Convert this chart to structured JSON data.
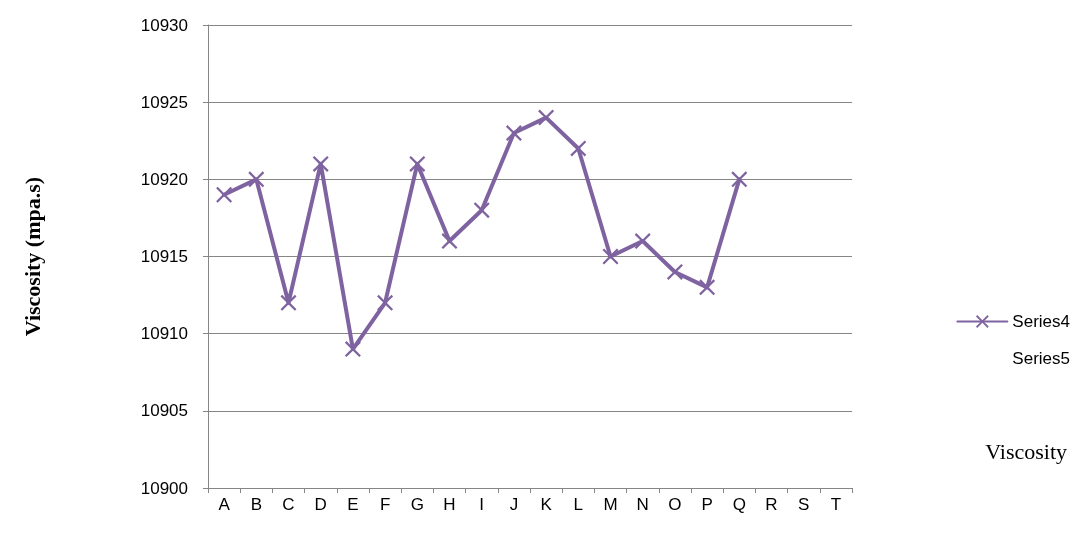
{
  "chart_data": {
    "type": "line",
    "ylabel": "Viscosity (mpa.s)",
    "annotations": [
      "Viscosity"
    ],
    "categories": [
      "A",
      "B",
      "C",
      "D",
      "E",
      "F",
      "G",
      "H",
      "I",
      "J",
      "K",
      "L",
      "M",
      "N",
      "O",
      "P",
      "Q",
      "R",
      "S",
      "T"
    ],
    "series": [
      {
        "name": "Series4",
        "color": "#7f63a1",
        "values": [
          10919,
          10920,
          10912,
          10921,
          10909,
          10912,
          10921,
          10916,
          10918,
          10923,
          10924,
          10922,
          10915,
          10916,
          10914,
          10913,
          10920,
          null,
          null,
          null
        ]
      },
      {
        "name": "Series5",
        "values": [
          null,
          null,
          null,
          null,
          null,
          null,
          null,
          null,
          null,
          null,
          null,
          null,
          null,
          null,
          null,
          null,
          null,
          null,
          null,
          null
        ]
      }
    ],
    "ylim": [
      10900,
      10930
    ],
    "yticks": [
      10900,
      10905,
      10910,
      10915,
      10920,
      10925,
      10930
    ],
    "grid": "y",
    "legend": "right",
    "marker": "cross",
    "line_style": "solid"
  }
}
